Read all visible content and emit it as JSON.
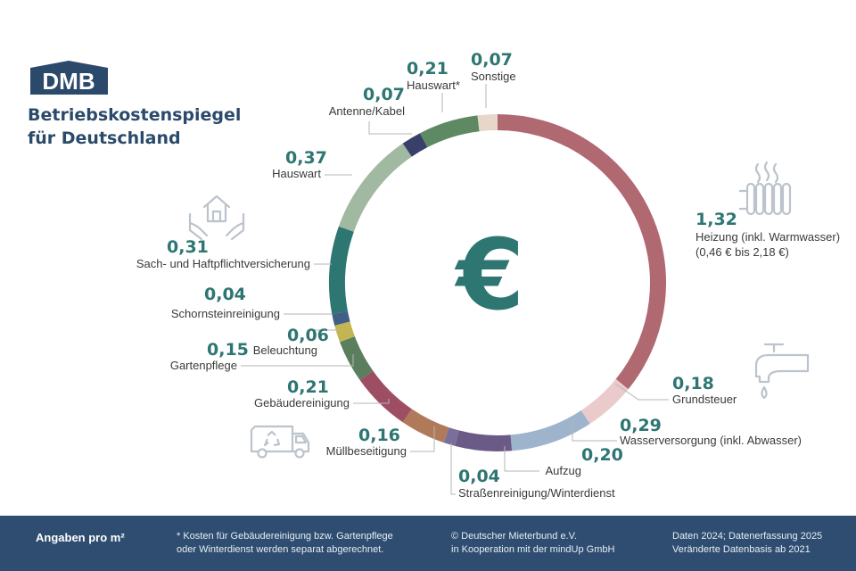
{
  "logo": {
    "text": "DMB",
    "color": "#2b4a6b"
  },
  "title": {
    "line1": "Betriebskostenspiegel",
    "line2": "für Deutschland"
  },
  "center_symbol": "€",
  "chart_data": {
    "type": "pie",
    "variant": "donut",
    "start": "top",
    "direction": "clockwise",
    "slices": [
      {
        "label": "Heizung (inkl. Warmwasser)",
        "value_text": "1,32",
        "value": 1.32,
        "note": "(0,46 € bis 2,18 €)",
        "color": "#b06871"
      },
      {
        "label": "Grundsteuer",
        "value_text": "0,18",
        "value": 0.18,
        "color": "#eacaca"
      },
      {
        "label": "Wasserversorgung (inkl. Abwasser)",
        "value_text": "0,29",
        "value": 0.29,
        "color": "#9eb4cc"
      },
      {
        "label": "Aufzug",
        "value_text": "0,20",
        "value": 0.2,
        "color": "#6a5b86"
      },
      {
        "label": "Straßenreinigung/Winterdienst",
        "value_text": "0,04",
        "value": 0.04,
        "color": "#7a6e9a"
      },
      {
        "label": "Müllbeseitigung",
        "value_text": "0,16",
        "value": 0.16,
        "color": "#b07a5a"
      },
      {
        "label": "Gebäudereinigung",
        "value_text": "0,21",
        "value": 0.21,
        "color": "#9e4e63"
      },
      {
        "label": "Gartenpflege",
        "value_text": "0,15",
        "value": 0.15,
        "color": "#5a7e5e"
      },
      {
        "label": "Beleuchtung",
        "value_text": "0,06",
        "value": 0.06,
        "color": "#c3b652"
      },
      {
        "label": "Schornsteinreinigung",
        "value_text": "0,04",
        "value": 0.04,
        "color": "#3f5f86"
      },
      {
        "label": "Sach- und Haftpflichtversicherung",
        "value_text": "0,31",
        "value": 0.31,
        "color": "#2e7672"
      },
      {
        "label": "Hauswart",
        "value_text": "0,37",
        "value": 0.37,
        "color": "#a1b9a1"
      },
      {
        "label": "Antenne/Kabel",
        "value_text": "0,07",
        "value": 0.07,
        "color": "#38406a"
      },
      {
        "label": "Hauswart*",
        "value_text": "0,21",
        "value": 0.21,
        "color": "#5d8a63"
      },
      {
        "label": "Sonstige",
        "value_text": "0,07",
        "value": 0.07,
        "color": "#e6d7c8"
      }
    ],
    "value_color": "#2e7672",
    "label_color": "#3a3a3a",
    "leader_color": "#b5b5b5"
  },
  "icons": [
    "radiator-icon",
    "house-hands-icon",
    "water-tap-icon",
    "garbage-truck-icon"
  ],
  "footer": {
    "unit": "Angaben pro m²",
    "note_line1": "* Kosten für Gebäudereinigung bzw. Gartenpflege",
    "note_line2": "oder Winterdienst werden separat abgerechnet.",
    "credit_line1": "© Deutscher Mieterbund e.V.",
    "credit_line2": "in Kooperation mit der mindUp GmbH",
    "data_line1": "Daten 2024; Datenerfassung 2025",
    "data_line2": "Veränderte Datenbasis ab 2021"
  }
}
